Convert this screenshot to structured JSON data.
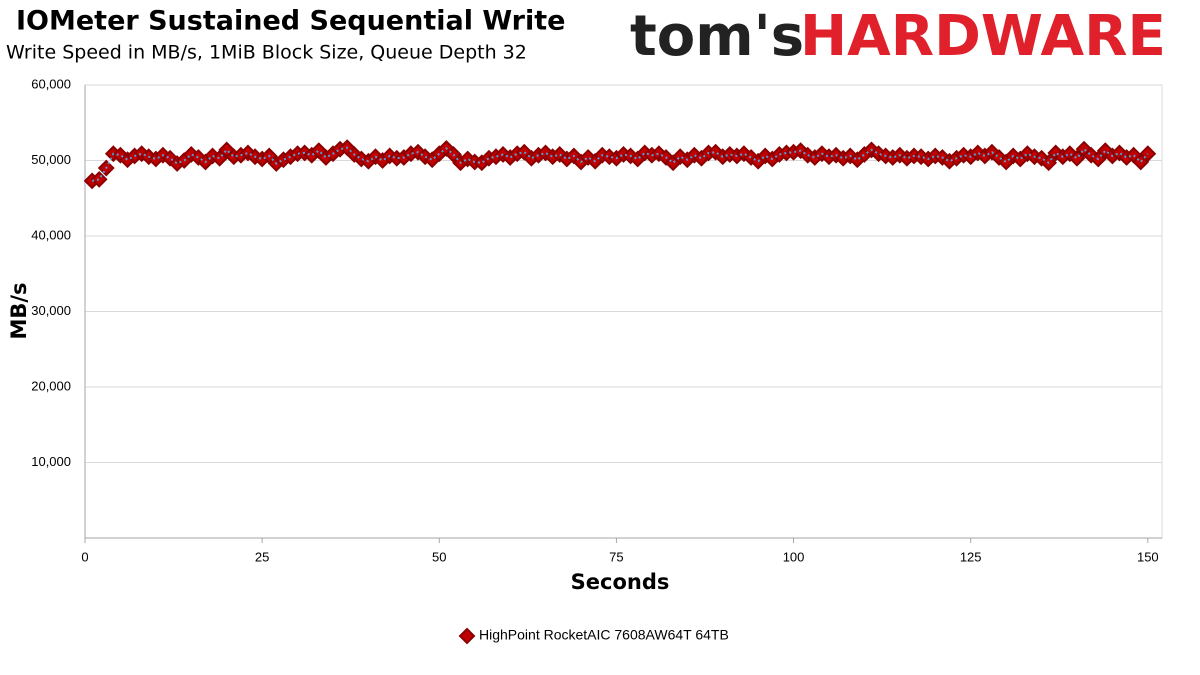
{
  "logo": {
    "prefix": "tom's",
    "name": "HARDWARE"
  },
  "chart_data": {
    "type": "line",
    "title": "IOMeter Sustained Sequential Write",
    "subtitle": "Write Speed in MB/s, 1MiB Block Size, Queue Depth 32",
    "x_label": "Seconds",
    "y_label": "MB/s",
    "xlim": [
      0,
      152
    ],
    "xticks": [
      0,
      25,
      50,
      75,
      100,
      125,
      150
    ],
    "ylim": [
      0,
      60000
    ],
    "yticks": [
      {
        "value": 10000,
        "label": "10,000"
      },
      {
        "value": 20000,
        "label": "20,000"
      },
      {
        "value": 30000,
        "label": "30,000"
      },
      {
        "value": 40000,
        "label": "40,000"
      },
      {
        "value": 50000,
        "label": "50,000"
      },
      {
        "value": 60000,
        "label": "60,000"
      }
    ],
    "grid": true,
    "legend": "bottom",
    "x": [
      1,
      2,
      3,
      4,
      5,
      6,
      7,
      8,
      9,
      10,
      11,
      12,
      13,
      14,
      15,
      16,
      17,
      18,
      19,
      20,
      21,
      22,
      23,
      24,
      25,
      26,
      27,
      28,
      29,
      30,
      31,
      32,
      33,
      34,
      35,
      36,
      37,
      38,
      39,
      40,
      41,
      42,
      43,
      44,
      45,
      46,
      47,
      48,
      49,
      50,
      51,
      52,
      53,
      54,
      55,
      56,
      57,
      58,
      59,
      60,
      61,
      62,
      63,
      64,
      65,
      66,
      67,
      68,
      69,
      70,
      71,
      72,
      73,
      74,
      75,
      76,
      77,
      78,
      79,
      80,
      81,
      82,
      83,
      84,
      85,
      86,
      87,
      88,
      89,
      90,
      91,
      92,
      93,
      94,
      95,
      96,
      97,
      98,
      99,
      100,
      101,
      102,
      103,
      104,
      105,
      106,
      107,
      108,
      109,
      110,
      111,
      112,
      113,
      114,
      115,
      116,
      117,
      118,
      119,
      120,
      121,
      122,
      123,
      124,
      125,
      126,
      127,
      128,
      129,
      130,
      131,
      132,
      133,
      134,
      135,
      136,
      137,
      138,
      139,
      140,
      141,
      142,
      143,
      144,
      145,
      146,
      147,
      148,
      149,
      150
    ],
    "series": [
      {
        "name": "HighPoint RocketAIC 7608AW64T 64TB",
        "color": "#c00000",
        "edge": "#8b0000",
        "line_color": "#5b9bd5",
        "values": [
          47300,
          47500,
          49000,
          50900,
          50700,
          50100,
          50600,
          50900,
          50500,
          50200,
          50700,
          50300,
          49600,
          50000,
          50800,
          50400,
          49800,
          50600,
          50300,
          51400,
          50500,
          50700,
          51000,
          50500,
          50200,
          50600,
          49600,
          50100,
          50500,
          50900,
          51000,
          50700,
          51300,
          50400,
          50900,
          51500,
          51700,
          50800,
          50200,
          49900,
          50500,
          50000,
          50600,
          50300,
          50400,
          50900,
          51100,
          50500,
          50100,
          50900,
          51600,
          50800,
          49700,
          50200,
          49800,
          49700,
          50300,
          50500,
          50800,
          50400,
          50900,
          51100,
          50300,
          50700,
          51000,
          50500,
          50800,
          50200,
          50600,
          49800,
          50400,
          49900,
          50700,
          50500,
          50300,
          50800,
          50600,
          50200,
          51000,
          50700,
          50900,
          50400,
          49700,
          50500,
          50100,
          50700,
          50300,
          51000,
          51100,
          50500,
          50800,
          50600,
          50900,
          50400,
          49900,
          50600,
          50200,
          50800,
          51000,
          51100,
          51300,
          50700,
          50400,
          50900,
          50500,
          50700,
          50300,
          50600,
          50100,
          50800,
          51400,
          50900,
          50600,
          50400,
          50700,
          50300,
          50600,
          50500,
          50200,
          50600,
          50400,
          49900,
          50300,
          50700,
          50500,
          51000,
          50600,
          51100,
          50400,
          49800,
          50600,
          50200,
          50900,
          50500,
          50300,
          49700,
          51000,
          50500,
          50900,
          50300,
          51500,
          50700,
          50200,
          51300,
          50600,
          51000,
          50400,
          50700,
          49800,
          50900
        ]
      }
    ]
  }
}
